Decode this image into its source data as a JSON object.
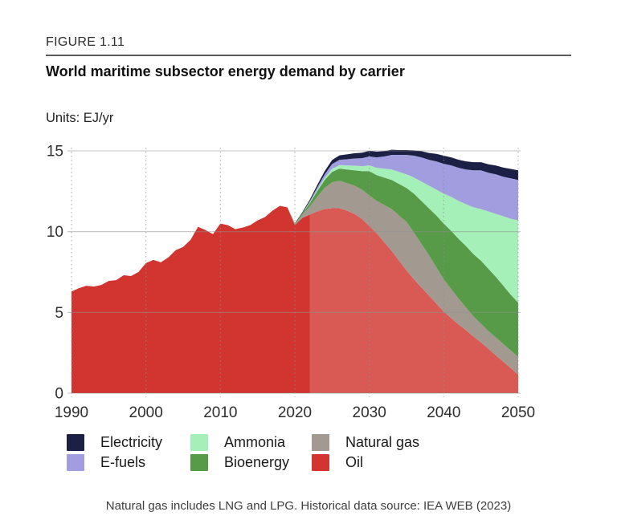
{
  "page": {
    "figure_label": "FIGURE 1.11",
    "title": "World maritime subsector energy demand by carrier",
    "units_label": "Units: EJ/yr",
    "footnote": "Natural gas includes LNG and LPG. Historical data source: IEA WEB (2023)"
  },
  "legend": {
    "items": [
      {
        "label": "Electricity",
        "color": "#1b2044"
      },
      {
        "label": "E-fuels",
        "color": "#a19ddf"
      },
      {
        "label": "Ammonia",
        "color": "#a5f0b8"
      },
      {
        "label": "Bioenergy",
        "color": "#579a48"
      },
      {
        "label": "Natural gas",
        "color": "#a29a90"
      },
      {
        "label": "Oil",
        "color": "#d23430"
      }
    ]
  },
  "chart_data": {
    "type": "area",
    "stacked": true,
    "title": "World maritime subsector energy demand by carrier",
    "ylabel": "EJ/yr",
    "ylim": [
      0,
      15
    ],
    "yticks": [
      0,
      5,
      10,
      15
    ],
    "xticks": [
      1990,
      2000,
      2010,
      2020,
      2030,
      2040,
      2050
    ],
    "grid": true,
    "legend_position": "bottom",
    "projection_start_year": 2022,
    "years": [
      1990,
      1991,
      1992,
      1993,
      1994,
      1995,
      1996,
      1997,
      1998,
      1999,
      2000,
      2001,
      2002,
      2003,
      2004,
      2005,
      2006,
      2007,
      2008,
      2009,
      2010,
      2011,
      2012,
      2013,
      2014,
      2015,
      2016,
      2017,
      2018,
      2019,
      2020,
      2021,
      2022,
      2023,
      2024,
      2025,
      2026,
      2027,
      2028,
      2029,
      2030,
      2031,
      2032,
      2033,
      2034,
      2035,
      2036,
      2037,
      2038,
      2039,
      2040,
      2041,
      2042,
      2043,
      2044,
      2045,
      2046,
      2047,
      2048,
      2049,
      2050
    ],
    "series": [
      {
        "name": "Oil",
        "key": "oil",
        "color": "#d23430",
        "projection_color": "#d95a55",
        "values": [
          6.3,
          6.5,
          6.65,
          6.6,
          6.7,
          6.95,
          7.0,
          7.3,
          7.25,
          7.5,
          8.05,
          8.25,
          8.1,
          8.4,
          8.85,
          9.05,
          9.5,
          10.3,
          10.1,
          9.85,
          10.5,
          10.4,
          10.15,
          10.25,
          10.4,
          10.7,
          10.9,
          11.3,
          11.6,
          11.5,
          10.4,
          10.85,
          11.05,
          11.25,
          11.4,
          11.45,
          11.45,
          11.3,
          11.1,
          10.8,
          10.35,
          9.9,
          9.35,
          8.8,
          8.2,
          7.6,
          7.05,
          6.55,
          6.05,
          5.55,
          5.05,
          4.65,
          4.25,
          3.9,
          3.5,
          3.15,
          2.75,
          2.35,
          1.95,
          1.55,
          1.15
        ]
      },
      {
        "name": "Natural gas",
        "key": "natural-gas",
        "color": "#a29a90",
        "values": [
          0,
          0,
          0,
          0,
          0,
          0,
          0,
          0,
          0,
          0,
          0,
          0,
          0,
          0,
          0,
          0,
          0,
          0,
          0,
          0,
          0,
          0,
          0,
          0,
          0,
          0,
          0,
          0,
          0,
          0,
          0.05,
          0.2,
          0.5,
          0.9,
          1.3,
          1.6,
          1.7,
          1.7,
          1.75,
          1.8,
          1.9,
          2.0,
          2.3,
          2.6,
          2.8,
          3.0,
          2.9,
          2.7,
          2.5,
          2.25,
          2.0,
          1.8,
          1.6,
          1.4,
          1.25,
          1.15,
          1.1,
          1.1,
          1.1,
          1.1,
          1.1
        ]
      },
      {
        "name": "Bioenergy",
        "key": "bioenergy",
        "color": "#579a48",
        "values": [
          0,
          0,
          0,
          0,
          0,
          0,
          0,
          0,
          0,
          0,
          0,
          0,
          0,
          0,
          0,
          0,
          0,
          0,
          0,
          0,
          0,
          0,
          0,
          0,
          0,
          0,
          0,
          0,
          0,
          0,
          0.05,
          0.1,
          0.2,
          0.35,
          0.5,
          0.65,
          0.75,
          0.85,
          0.95,
          1.15,
          1.5,
          1.6,
          1.7,
          1.8,
          1.95,
          2.1,
          2.4,
          2.65,
          2.9,
          3.2,
          3.45,
          3.6,
          3.7,
          3.8,
          3.85,
          3.9,
          3.85,
          3.75,
          3.6,
          3.45,
          3.35
        ]
      },
      {
        "name": "Ammonia",
        "key": "ammonia",
        "color": "#a5f0b8",
        "values": [
          0,
          0,
          0,
          0,
          0,
          0,
          0,
          0,
          0,
          0,
          0,
          0,
          0,
          0,
          0,
          0,
          0,
          0,
          0,
          0,
          0,
          0,
          0,
          0,
          0,
          0,
          0,
          0,
          0,
          0,
          0,
          0,
          0.05,
          0.08,
          0.12,
          0.18,
          0.22,
          0.25,
          0.28,
          0.3,
          0.35,
          0.45,
          0.55,
          0.65,
          0.75,
          0.85,
          1.0,
          1.2,
          1.4,
          1.6,
          1.85,
          2.1,
          2.35,
          2.6,
          2.9,
          3.2,
          3.55,
          3.9,
          4.3,
          4.7,
          5.1
        ]
      },
      {
        "name": "E-fuels",
        "key": "e-fuels",
        "color": "#a19ddf",
        "values": [
          0,
          0,
          0,
          0,
          0,
          0,
          0,
          0,
          0,
          0,
          0,
          0,
          0,
          0,
          0,
          0,
          0,
          0,
          0,
          0,
          0,
          0,
          0,
          0,
          0,
          0,
          0,
          0,
          0,
          0,
          0,
          0,
          0.07,
          0.15,
          0.22,
          0.3,
          0.33,
          0.38,
          0.45,
          0.5,
          0.55,
          0.65,
          0.75,
          0.9,
          1.05,
          1.2,
          1.35,
          1.5,
          1.6,
          1.75,
          1.85,
          1.95,
          2.05,
          2.15,
          2.3,
          2.4,
          2.4,
          2.45,
          2.45,
          2.5,
          2.5
        ]
      },
      {
        "name": "Electricity",
        "key": "electricity",
        "color": "#1b2044",
        "values": [
          0,
          0,
          0,
          0,
          0,
          0,
          0,
          0,
          0,
          0,
          0,
          0,
          0,
          0,
          0,
          0,
          0,
          0,
          0,
          0,
          0,
          0,
          0,
          0,
          0,
          0,
          0,
          0,
          0,
          0,
          0.02,
          0.05,
          0.1,
          0.15,
          0.2,
          0.25,
          0.27,
          0.3,
          0.32,
          0.33,
          0.35,
          0.35,
          0.33,
          0.32,
          0.3,
          0.3,
          0.33,
          0.38,
          0.42,
          0.46,
          0.5,
          0.5,
          0.5,
          0.5,
          0.5,
          0.5,
          0.52,
          0.54,
          0.56,
          0.58,
          0.6
        ]
      }
    ]
  }
}
